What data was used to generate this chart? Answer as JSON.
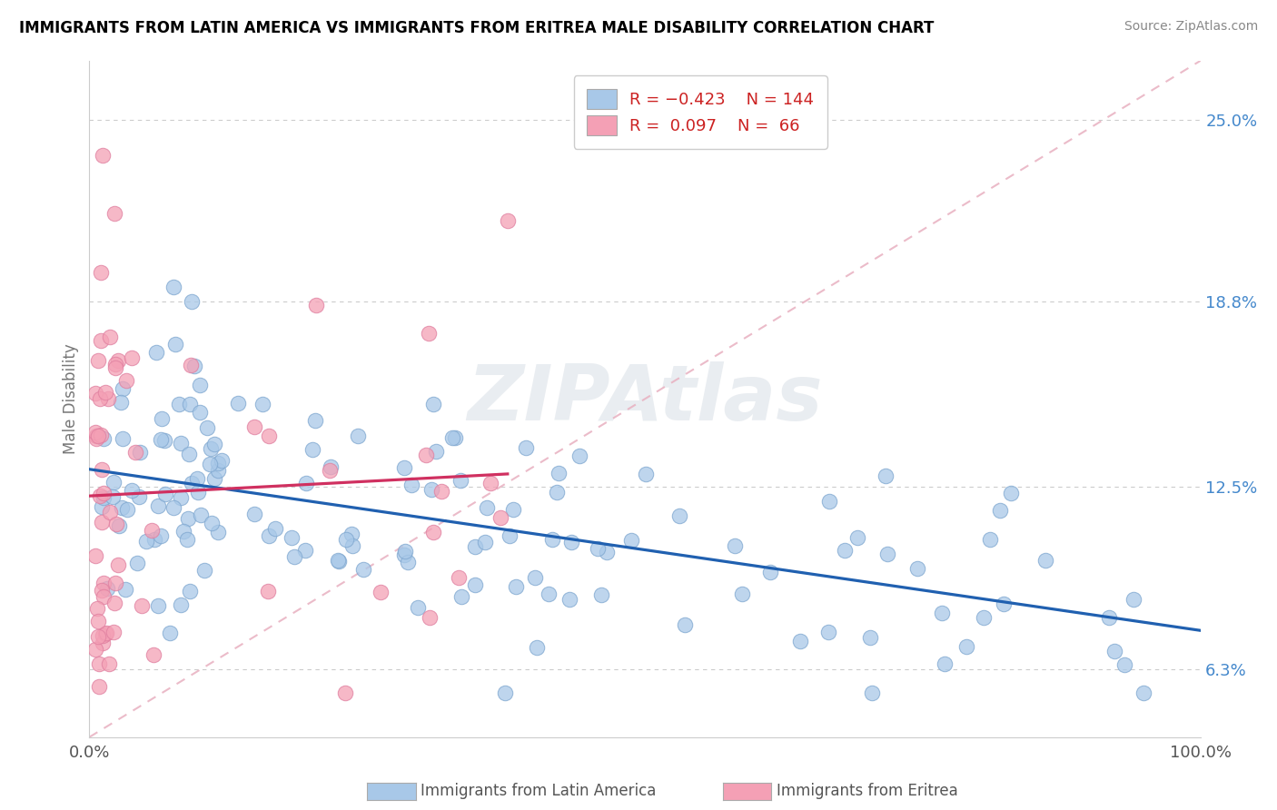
{
  "title": "IMMIGRANTS FROM LATIN AMERICA VS IMMIGRANTS FROM ERITREA MALE DISABILITY CORRELATION CHART",
  "source": "Source: ZipAtlas.com",
  "ylabel": "Male Disability",
  "y_ticks": [
    0.063,
    0.125,
    0.188,
    0.25
  ],
  "y_tick_labels": [
    "6.3%",
    "12.5%",
    "18.8%",
    "25.0%"
  ],
  "xlim": [
    0.0,
    1.0
  ],
  "ylim": [
    0.04,
    0.27
  ],
  "r_blue": "-0.423",
  "n_blue": 144,
  "r_pink": "0.097",
  "n_pink": 66,
  "color_blue": "#a8c8e8",
  "color_pink": "#f4a0b5",
  "color_blue_edge": "#80a8d0",
  "color_pink_edge": "#e080a0",
  "color_blue_line": "#2060b0",
  "color_pink_line": "#d03060",
  "color_diag": "#e8b0c0",
  "watermark": "ZIPAtlas",
  "legend_label_blue": "Immigrants from Latin America",
  "legend_label_pink": "Immigrants from Eritrea",
  "legend_text_color": "#cc2222",
  "ytick_color": "#4488cc",
  "title_fontsize": 12,
  "source_fontsize": 10,
  "tick_fontsize": 13,
  "legend_fontsize": 13
}
